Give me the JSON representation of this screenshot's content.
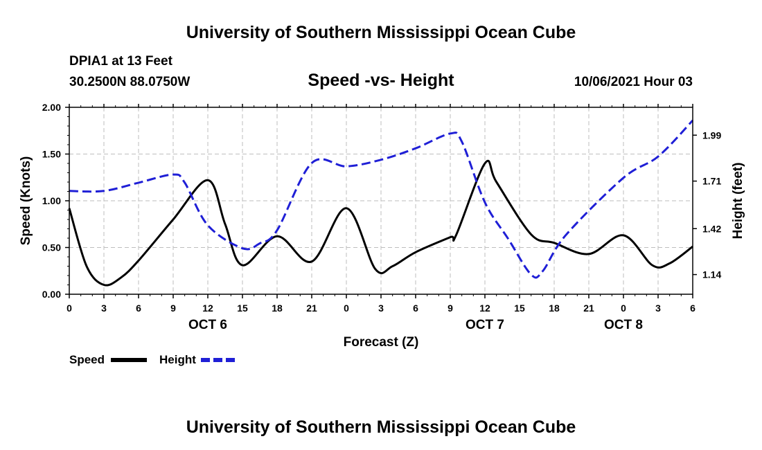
{
  "header": {
    "title": "University of Southern Mississippi Ocean Cube",
    "station": "DPIA1 at 13 Feet",
    "coords": "30.2500N  88.0750W",
    "chart_title": "Speed -vs- Height",
    "datetime": "10/06/2021 Hour 03"
  },
  "footer": {
    "title": "University of Southern Mississippi Ocean Cube"
  },
  "colors": {
    "speed": "#000000",
    "height": "#1f1fd6",
    "grid": "#bdbdbd"
  },
  "chart_data": {
    "type": "line",
    "title": "Speed -vs- Height",
    "xlabel": "Forecast (Z)",
    "ylabel": "Speed (Knots)",
    "y2label": "Height (feet)",
    "x_tick_labels": [
      "0",
      "3",
      "6",
      "9",
      "12",
      "15",
      "18",
      "21",
      "0",
      "3",
      "6",
      "9",
      "12",
      "15",
      "18",
      "21",
      "0",
      "3",
      "6"
    ],
    "date_labels": [
      {
        "label": "OCT 6",
        "tick_index": 4
      },
      {
        "label": "OCT 7",
        "tick_index": 12
      },
      {
        "label": "OCT 8",
        "tick_index": 16
      }
    ],
    "xlim": [
      0,
      54
    ],
    "ylim": [
      0,
      2.0
    ],
    "y_ticks": [
      "0.00",
      "0.50",
      "1.00",
      "1.50",
      "2.00"
    ],
    "y2lim": [
      1.02,
      2.16
    ],
    "y2_ticks": [
      "1.14",
      "1.42",
      "1.71",
      "1.99"
    ],
    "grid": true,
    "legend": [
      {
        "name": "Speed",
        "style": "solid"
      },
      {
        "name": "Height",
        "style": "dashed"
      }
    ],
    "series": [
      {
        "name": "Speed",
        "axis": "left",
        "x": [
          0,
          1.5,
          3,
          4.5,
          6,
          9,
          12,
          13.5,
          15,
          18,
          21,
          24,
          26.5,
          28,
          30,
          33,
          33.5,
          36,
          37,
          40,
          42,
          45,
          48,
          50.5,
          52,
          54
        ],
        "y": [
          0.92,
          0.3,
          0.1,
          0.18,
          0.36,
          0.8,
          1.22,
          0.75,
          0.31,
          0.62,
          0.35,
          0.92,
          0.27,
          0.3,
          0.45,
          0.61,
          0.63,
          1.4,
          1.2,
          0.64,
          0.55,
          0.43,
          0.63,
          0.31,
          0.33,
          0.51
        ]
      },
      {
        "name": "Height",
        "axis": "right",
        "x": [
          0,
          3,
          6,
          9,
          10,
          12,
          15,
          16.5,
          18,
          21,
          24,
          27,
          30,
          33,
          34,
          36,
          38,
          40,
          41,
          43,
          48,
          51,
          54
        ],
        "y": [
          1.65,
          1.65,
          1.7,
          1.75,
          1.7,
          1.44,
          1.3,
          1.33,
          1.41,
          1.82,
          1.8,
          1.84,
          1.91,
          2.0,
          1.95,
          1.58,
          1.36,
          1.14,
          1.16,
          1.38,
          1.73,
          1.86,
          2.08
        ]
      }
    ]
  }
}
